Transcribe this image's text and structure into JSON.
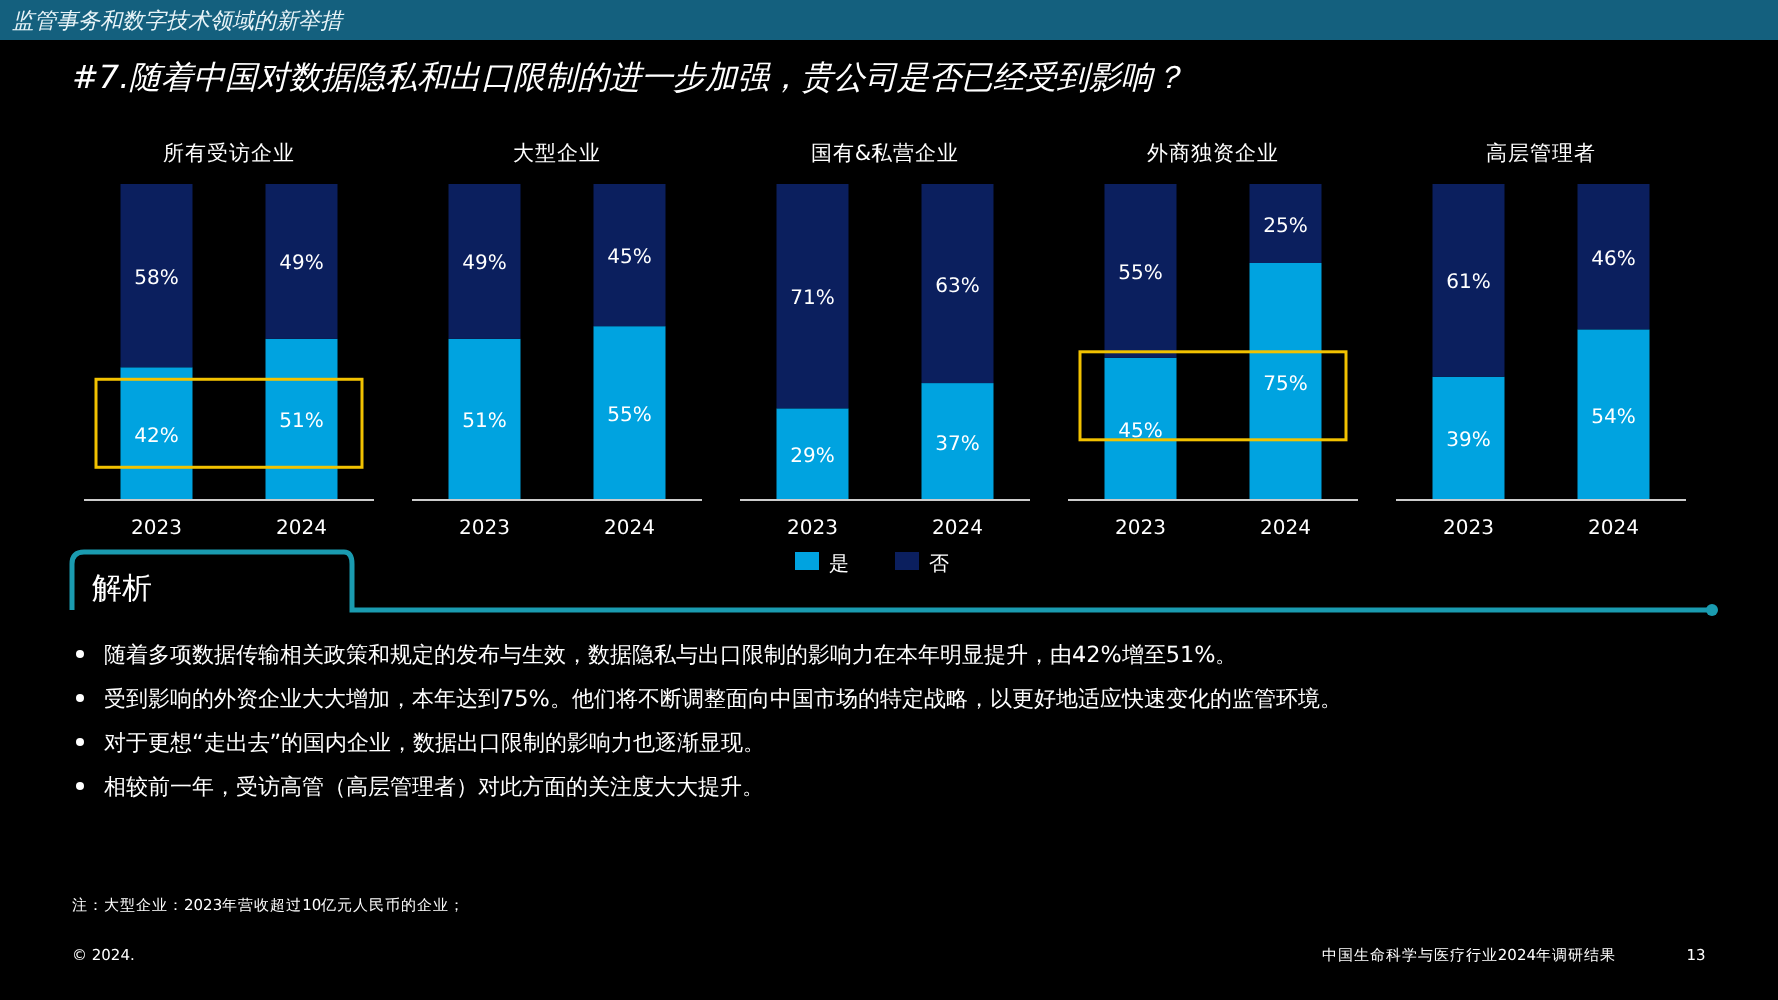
{
  "chart_data": [
    {
      "type": "bar",
      "title": "所有受访企业",
      "categories": [
        "2023",
        "2024"
      ],
      "stacked": true,
      "legend": false,
      "series": [
        {
          "color": "#00a3e0",
          "values": [
            42,
            51
          ],
          "value_labels": [
            "42%",
            "51%"
          ]
        },
        {
          "color": "#0b1f5e",
          "values": [
            58,
            49
          ],
          "value_labels": [
            "58%",
            "49%"
          ]
        }
      ]
    },
    {
      "type": "bar",
      "title": "大型企业",
      "categories": [
        "2023",
        "2024"
      ],
      "stacked": true,
      "legend": false,
      "series": [
        {
          "color": "#00a3e0",
          "values": [
            51,
            55
          ],
          "value_labels": [
            "51%",
            "55%"
          ]
        },
        {
          "color": "#0b1f5e",
          "values": [
            49,
            45
          ],
          "value_labels": [
            "49%",
            "45%"
          ]
        }
      ]
    },
    {
      "type": "bar",
      "title": "国有&私营企业",
      "categories": [
        "2023",
        "2024"
      ],
      "stacked": true,
      "legend": "bottom",
      "series": [
        {
          "name": "是",
          "color": "#00a3e0",
          "values": [
            29,
            37
          ],
          "value_labels": [
            "29%",
            "37%"
          ]
        },
        {
          "name": "否",
          "color": "#0b1f5e",
          "values": [
            71,
            63
          ],
          "value_labels": [
            "71%",
            "63%"
          ]
        }
      ]
    },
    {
      "type": "bar",
      "title": "外商独资企业",
      "categories": [
        "2023",
        "2024"
      ],
      "stacked": true,
      "legend": false,
      "series": [
        {
          "color": "#00a3e0",
          "values": [
            45,
            75
          ],
          "value_labels": [
            "45%",
            "75%"
          ]
        },
        {
          "color": "#0b1f5e",
          "values": [
            55,
            25
          ],
          "value_labels": [
            "55%",
            "25%"
          ]
        }
      ]
    },
    {
      "type": "bar",
      "title": "高层管理者",
      "categories": [
        "2023",
        "2024"
      ],
      "stacked": true,
      "legend": false,
      "series": [
        {
          "color": "#00a3e0",
          "values": [
            39,
            54
          ],
          "value_labels": [
            "39%",
            "54%"
          ]
        },
        {
          "color": "#0b1f5e",
          "values": [
            61,
            46
          ],
          "value_labels": [
            "61%",
            "46%"
          ]
        }
      ]
    },
    {
      "type": "other",
      "title": "#7.随着中国对数据隐私和出口限制的进一步加强，贵公司是否已经受到影响？",
      "subtitle": "监管事务和数字技术领域的新举措",
      "annotations": [
        "解析",
        "随着多项数据传输相关政策和规定的发布与生效，数据隐私与出口限制的影响力在本年明显提升，由42%增至51%。",
        "受到影响的外资企业大大增加，本年达到75%。他们将不断调整面向中国市场的特定战略，以更好地适应快速变化的监管环境。",
        "对于更想“走出去”的国内企业，数据出口限制的影响力也逐渐显现。",
        "相较前一年，受访高管（高层管理者）对此方面的关注度大大提升。",
        "注：大型企业：2023年营收超过10亿元人民币的企业；",
        "© 2024.",
        "中国生命科学与医疗行业2024年调研结果",
        "13"
      ]
    }
  ]
}
